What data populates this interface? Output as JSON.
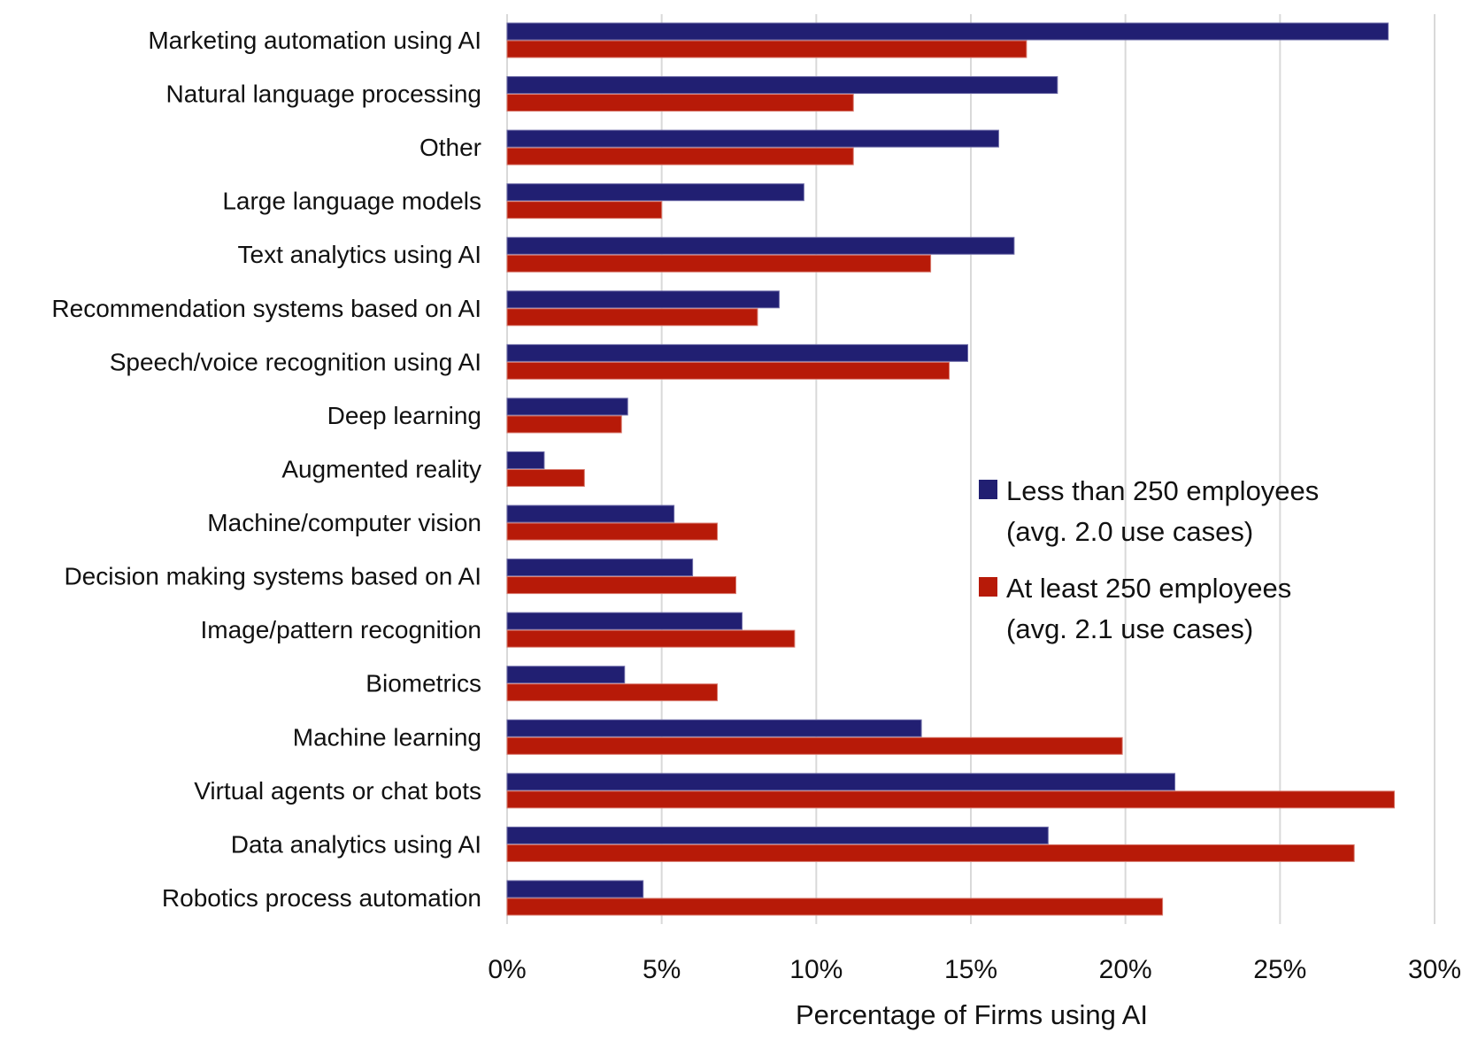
{
  "chart_data": {
    "type": "bar",
    "orientation": "horizontal",
    "title": "",
    "xlabel": "Percentage of Firms using AI",
    "ylabel": "",
    "xlim": [
      0,
      30
    ],
    "x_ticks": [
      0,
      5,
      10,
      15,
      20,
      25,
      30
    ],
    "x_tick_labels": [
      "0%",
      "5%",
      "10%",
      "15%",
      "20%",
      "25%",
      "30%"
    ],
    "grid": "vertical",
    "legend_position": "right-center",
    "categories": [
      "Marketing automation using AI",
      "Natural language processing",
      "Other",
      "Large language models",
      "Text analytics using AI",
      "Recommendation systems based on AI",
      "Speech/voice recognition using AI",
      "Deep learning",
      "Augmented reality",
      "Machine/computer vision",
      "Decision making systems based on AI",
      "Image/pattern recognition",
      "Biometrics",
      "Machine learning",
      "Virtual agents or chat bots",
      "Data analytics using AI",
      "Robotics process automation"
    ],
    "series": [
      {
        "name": "Less than 250 employees",
        "legend_line2": "(avg. 2.0 use cases)",
        "color": "#211f72",
        "values": [
          28.5,
          17.8,
          15.9,
          9.6,
          16.4,
          8.8,
          14.9,
          3.9,
          1.2,
          5.4,
          6.0,
          7.6,
          3.8,
          13.4,
          21.6,
          17.5,
          4.4
        ]
      },
      {
        "name": "At least 250 employees",
        "legend_line2": "(avg. 2.1 use cases)",
        "color": "#b71a08",
        "values": [
          16.8,
          11.2,
          11.2,
          5.0,
          13.7,
          8.1,
          14.3,
          3.7,
          2.5,
          6.8,
          7.4,
          9.3,
          6.8,
          19.9,
          28.7,
          27.4,
          21.2
        ]
      }
    ]
  }
}
